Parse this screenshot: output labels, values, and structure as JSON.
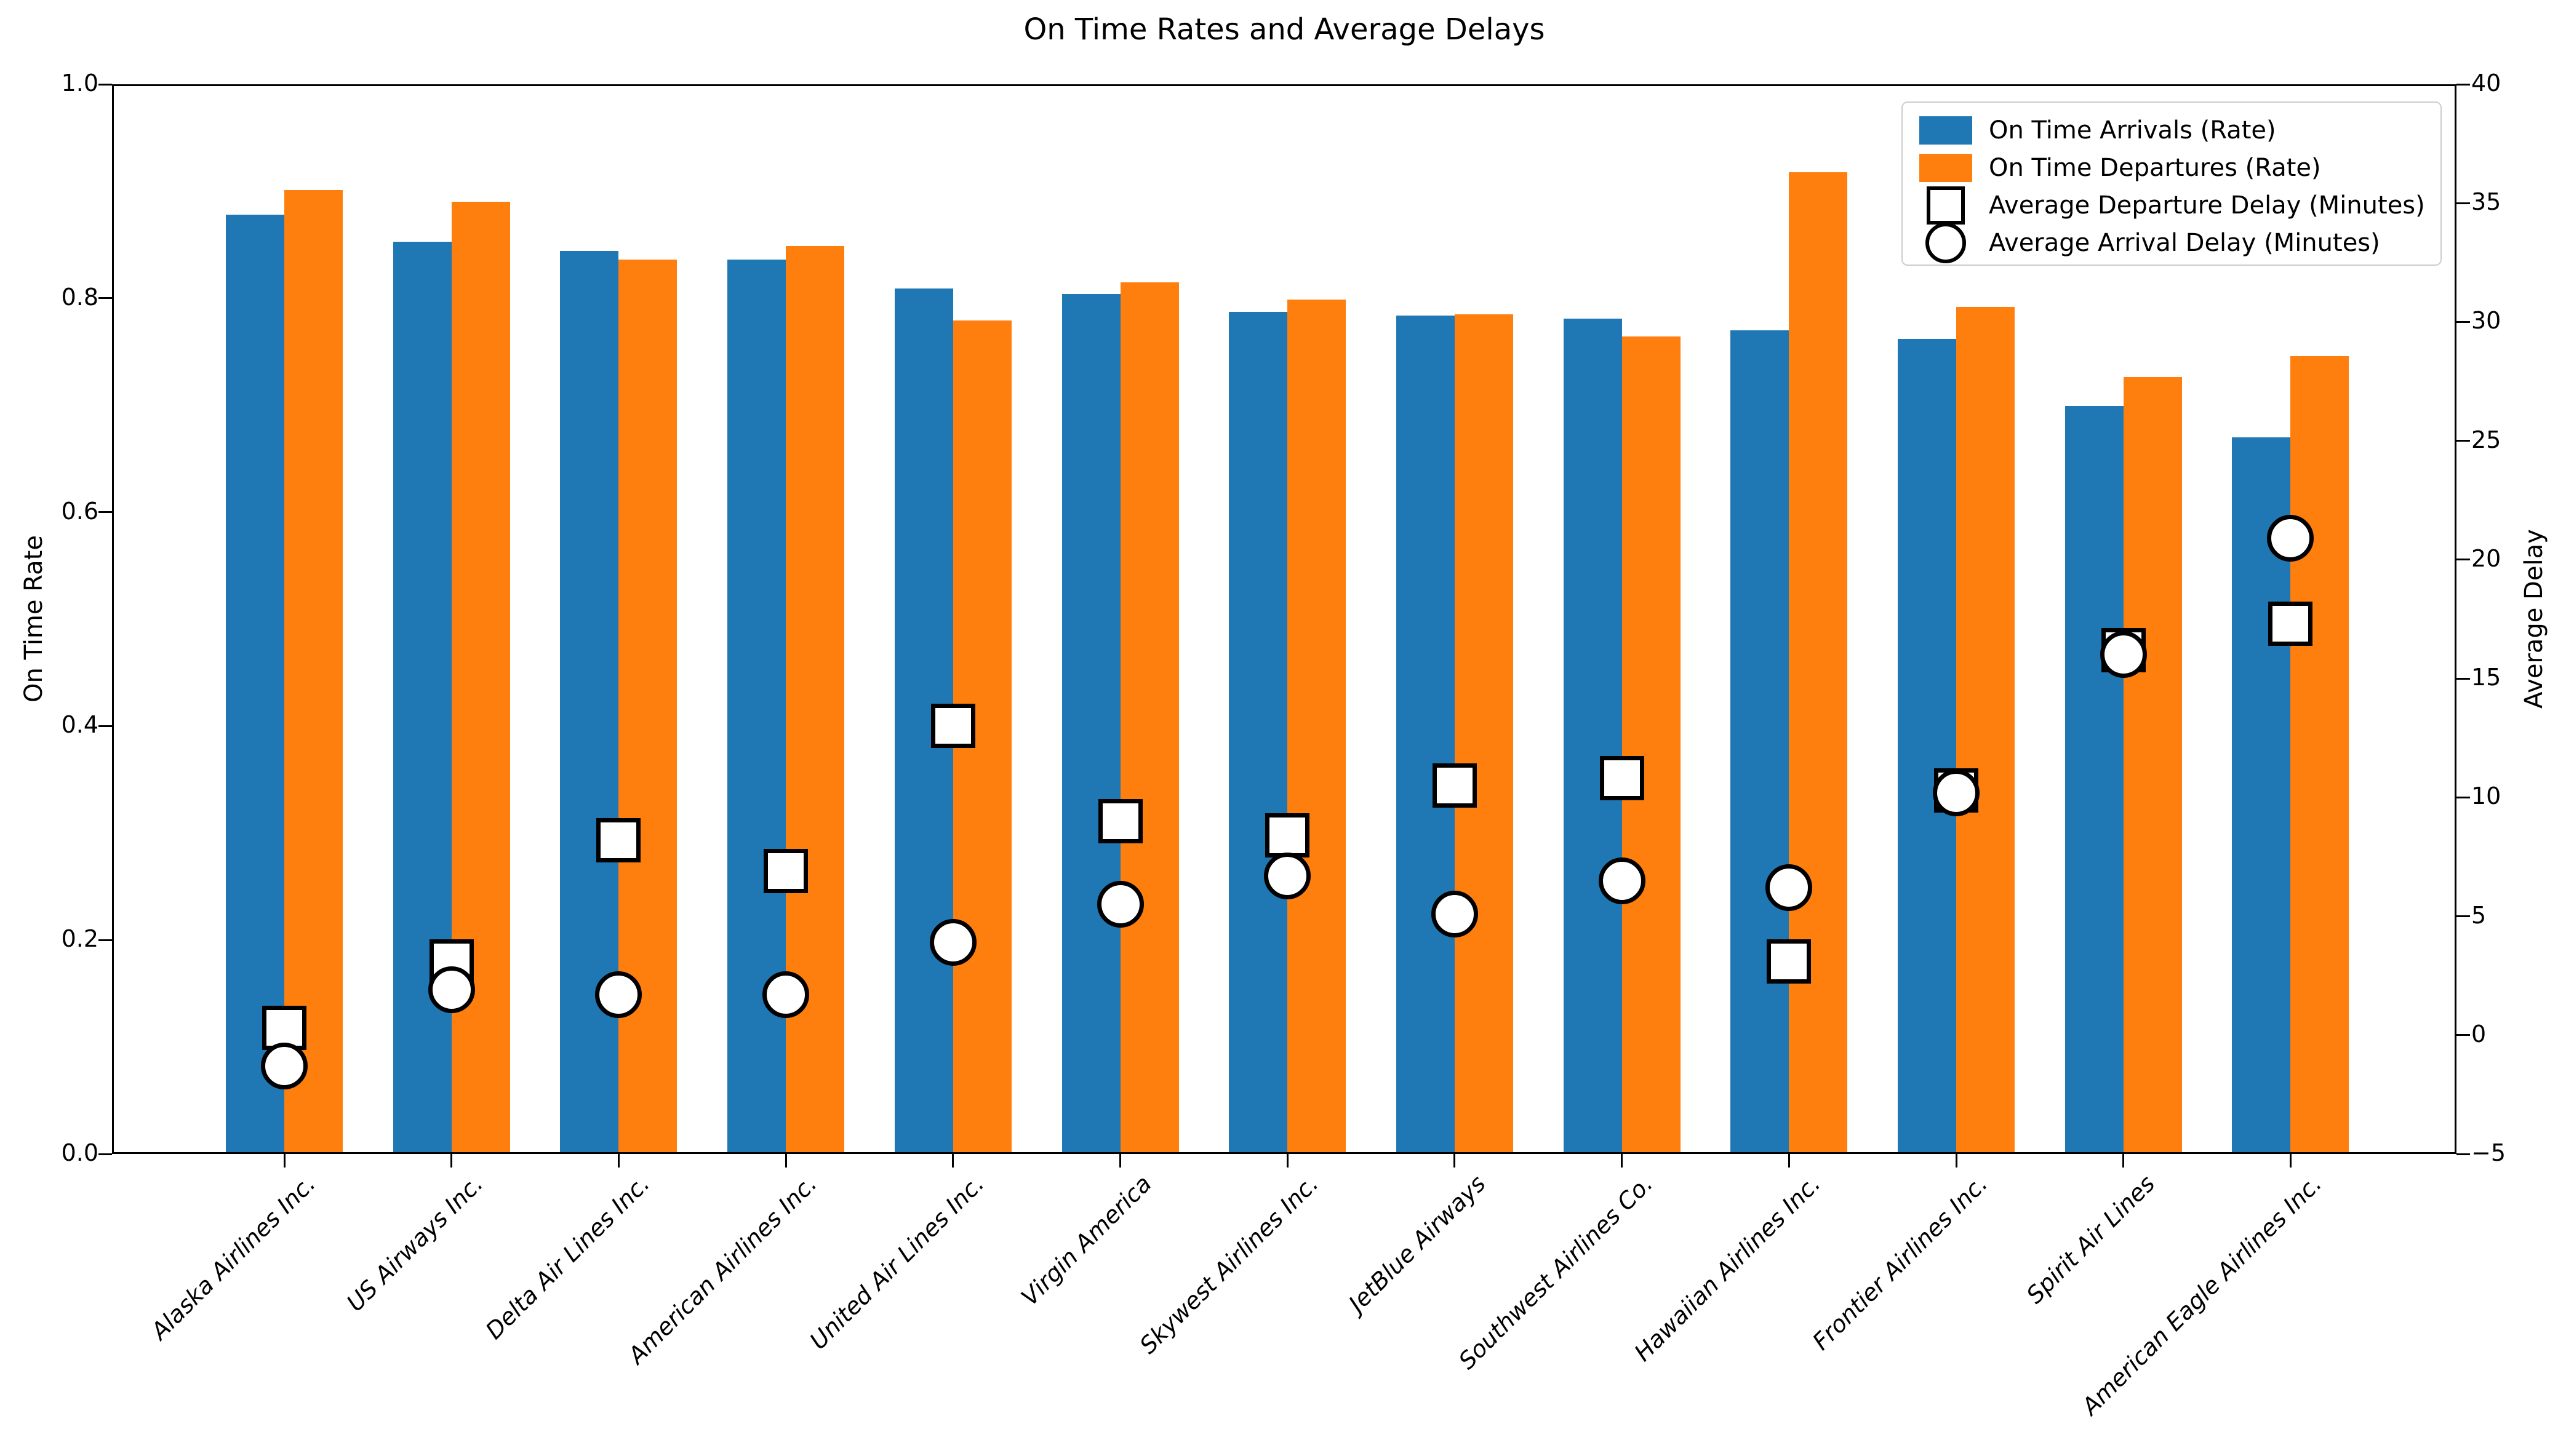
{
  "title": "On Time Rates and Average Delays",
  "axes": {
    "y_left": {
      "label": "On Time Rate",
      "tick_values": [
        0.0,
        0.2,
        0.4,
        0.6,
        0.8,
        1.0
      ],
      "tick_labels": [
        "0.0",
        "0.2",
        "0.4",
        "0.6",
        "0.8",
        "1.0"
      ]
    },
    "y_right": {
      "label": "Average Delay",
      "tick_values": [
        -5,
        0,
        5,
        10,
        15,
        20,
        25,
        30,
        35,
        40
      ],
      "tick_labels": [
        "−5",
        "0",
        "5",
        "10",
        "15",
        "20",
        "25",
        "30",
        "35",
        "40"
      ]
    },
    "x": {
      "categories": [
        "Alaska Airlines Inc.",
        "US Airways Inc.",
        "Delta Air Lines Inc.",
        "American Airlines Inc.",
        "United Air Lines Inc.",
        "Virgin America",
        "Skywest Airlines Inc.",
        "JetBlue Airways",
        "Southwest Airlines Co.",
        "Hawaiian Airlines Inc.",
        "Frontier Airlines Inc.",
        "Spirit Air Lines",
        "American Eagle Airlines Inc."
      ]
    }
  },
  "legend": [
    {
      "handle": "blue-patch",
      "label": "On Time Arrivals (Rate)"
    },
    {
      "handle": "orange-patch",
      "label": "On Time Departures (Rate)"
    },
    {
      "handle": "square-marker",
      "label": "Average Departure Delay (Minutes)"
    },
    {
      "handle": "circle-marker",
      "label": "Average Arrival Delay (Minutes)"
    }
  ],
  "colors": {
    "arrivals_bar": "#1f77b4",
    "departures_bar": "#ff7f0e",
    "marker_fill": "#ffffff",
    "marker_edge": "#000000",
    "legend_border": "#cccccc"
  },
  "chart_data": {
    "type": "bar",
    "title": "On Time Rates and Average Delays",
    "xlabel": "",
    "ylabel_left": "On Time Rate",
    "ylabel_right": "Average Delay",
    "ylim_left": [
      0.0,
      1.0
    ],
    "ylim_right": [
      -5,
      40
    ],
    "grid": false,
    "legend_position": "upper right",
    "categories": [
      "Alaska Airlines Inc.",
      "US Airways Inc.",
      "Delta Air Lines Inc.",
      "American Airlines Inc.",
      "United Air Lines Inc.",
      "Virgin America",
      "Skywest Airlines Inc.",
      "JetBlue Airways",
      "Southwest Airlines Co.",
      "Hawaiian Airlines Inc.",
      "Frontier Airlines Inc.",
      "Spirit Air Lines",
      "American Eagle Airlines Inc."
    ],
    "series": [
      {
        "name": "On Time Arrivals (Rate)",
        "type": "bar",
        "axis": "left",
        "color": "#1f77b4",
        "values": [
          0.878,
          0.853,
          0.844,
          0.836,
          0.809,
          0.804,
          0.787,
          0.784,
          0.781,
          0.77,
          0.762,
          0.699,
          0.67
        ]
      },
      {
        "name": "On Time Departures (Rate)",
        "type": "bar",
        "axis": "left",
        "color": "#ff7f0e",
        "values": [
          0.901,
          0.89,
          0.836,
          0.849,
          0.779,
          0.815,
          0.799,
          0.785,
          0.764,
          0.918,
          0.792,
          0.726,
          0.746
        ]
      },
      {
        "name": "Average Departure Delay (Minutes)",
        "type": "scatter",
        "marker": "square",
        "axis": "right",
        "values": [
          0.3,
          3.1,
          8.2,
          6.9,
          13.0,
          9.0,
          8.4,
          10.5,
          10.8,
          3.1,
          10.3,
          16.2,
          17.3
        ]
      },
      {
        "name": "Average Arrival Delay (Minutes)",
        "type": "scatter",
        "marker": "circle",
        "axis": "right",
        "values": [
          -1.3,
          1.9,
          1.7,
          1.7,
          3.9,
          5.5,
          6.7,
          5.1,
          6.5,
          6.2,
          10.2,
          16.0,
          20.9
        ]
      }
    ]
  }
}
